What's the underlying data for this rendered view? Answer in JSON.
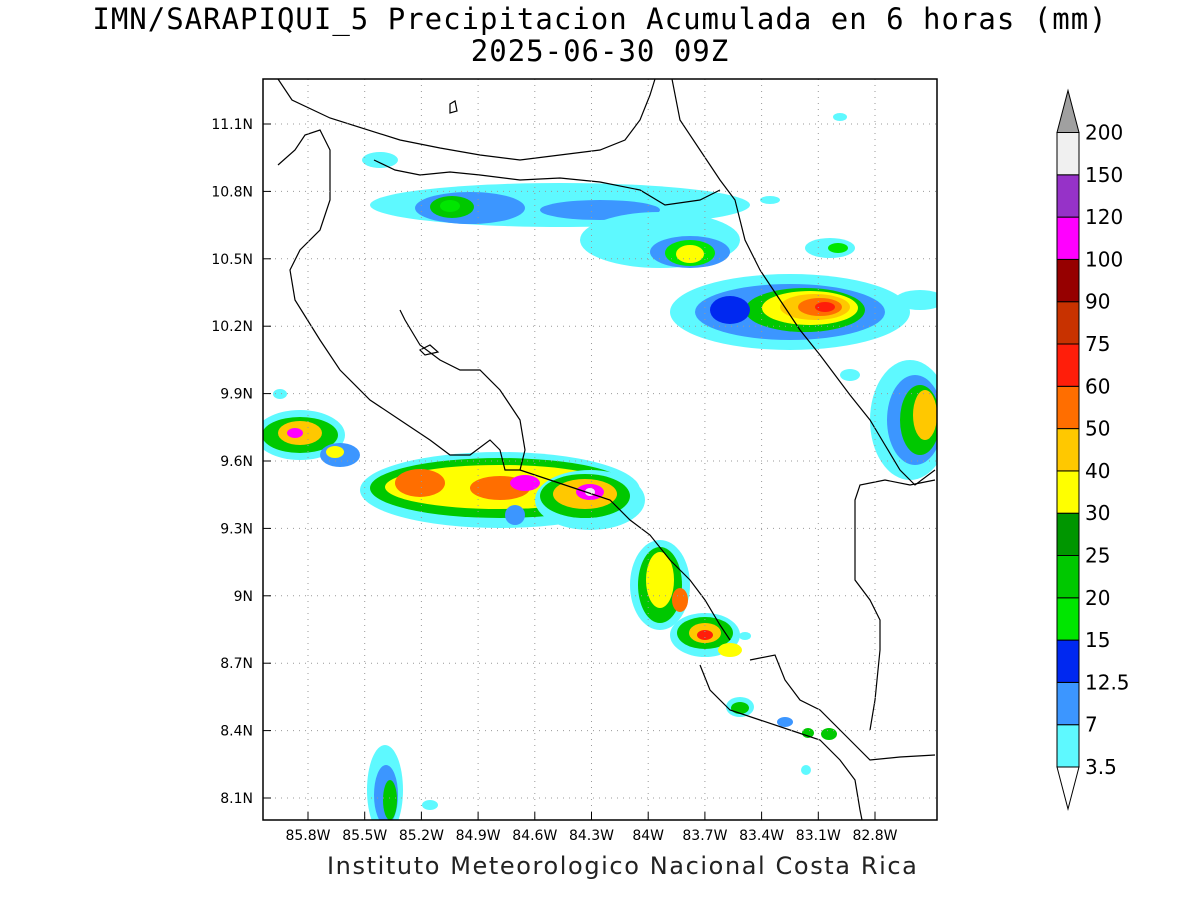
{
  "title_line1": "IMN/SARAPIQUI_5 Precipitacion Acumulada en 6 horas (mm)",
  "title_line2": "2025-06-30 09Z",
  "footer": "Instituto Meteorologico Nacional Costa Rica",
  "map": {
    "lon_ticks": [
      "85.8W",
      "85.5W",
      "85.2W",
      "84.9W",
      "84.6W",
      "84.3W",
      "84W",
      "83.7W",
      "83.4W",
      "83.1W",
      "82.8W"
    ],
    "lat_ticks": [
      "11.1N",
      "10.8N",
      "10.5N",
      "10.2N",
      "9.9N",
      "9.6N",
      "9.3N",
      "9N",
      "8.7N",
      "8.4N",
      "8.1N"
    ],
    "grid": true
  },
  "colorbar": {
    "labels": [
      "3.5",
      "7",
      "12.5",
      "15",
      "20",
      "25",
      "30",
      "40",
      "50",
      "60",
      "75",
      "90",
      "100",
      "120",
      "150",
      "200"
    ],
    "colors": [
      "#5ef9ff",
      "#3c96ff",
      "#0028f0",
      "#00e600",
      "#00c800",
      "#009600",
      "#ffff00",
      "#ffc800",
      "#ff6e00",
      "#ff1e0a",
      "#c83200",
      "#960000",
      "#ff00ff",
      "#9632c8",
      "#f0f0f0",
      "#a0a0a0"
    ]
  },
  "precip_colors": {
    "light": "#5ef9ff",
    "blue": "#3c96ff",
    "dblue": "#0028f0",
    "green": "#00e600",
    "mgreen": "#00c800",
    "dgreen": "#009600",
    "yellow": "#ffff00",
    "gold": "#ffc800",
    "orange": "#ff6e00",
    "red": "#ff1e0a",
    "magenta": "#ff00ff",
    "white": "#f0f0f0"
  }
}
